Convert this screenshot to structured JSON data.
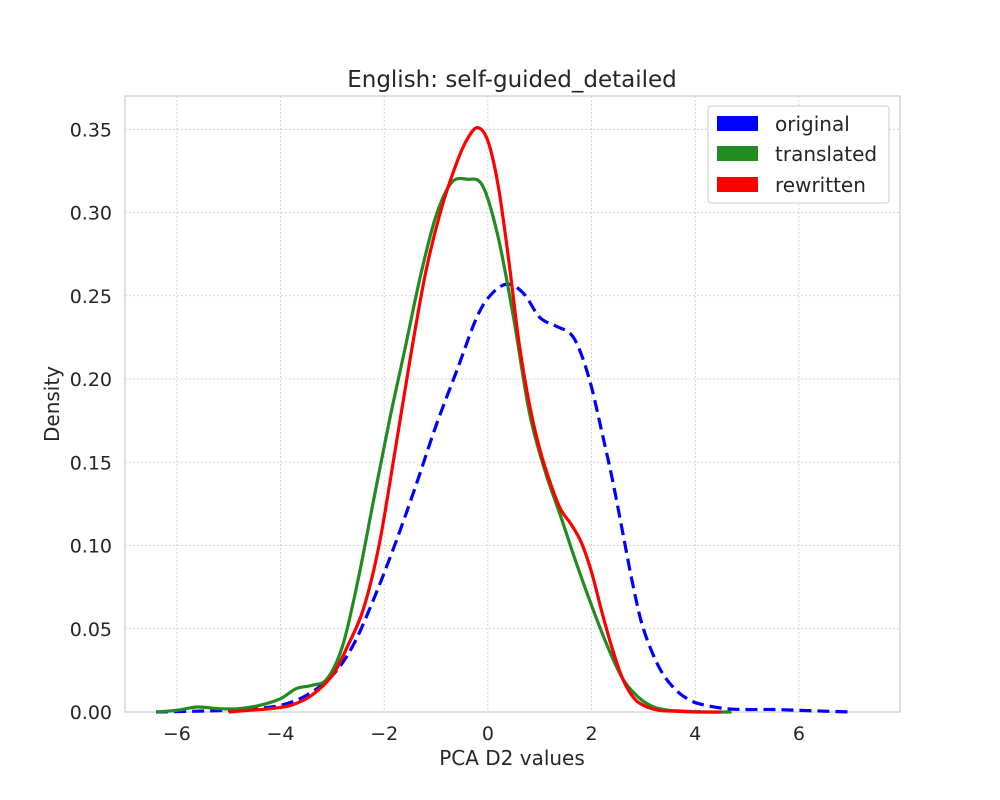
{
  "chart_data": {
    "type": "line",
    "title": "English: self-guided_detailed",
    "xlabel": "PCA D2 values",
    "ylabel": "Density",
    "xlim": [
      -7.0,
      7.95
    ],
    "ylim": [
      0,
      0.37
    ],
    "xticks": [
      -6,
      -4,
      -2,
      0,
      2,
      4,
      6
    ],
    "xtick_labels": [
      "−6",
      "−4",
      "−2",
      "0",
      "2",
      "4",
      "6"
    ],
    "yticks": [
      0.0,
      0.05,
      0.1,
      0.15,
      0.2,
      0.25,
      0.3,
      0.35
    ],
    "ytick_labels": [
      "0.00",
      "0.05",
      "0.10",
      "0.15",
      "0.20",
      "0.25",
      "0.30",
      "0.35"
    ],
    "grid": true,
    "legend_position": "top-right",
    "series": [
      {
        "name": "original",
        "color": "#0000ff",
        "dash": true,
        "x": [
          -6.4,
          -5.6,
          -5.0,
          -4.5,
          -4.0,
          -3.5,
          -3.0,
          -2.6,
          -2.2,
          -1.8,
          -1.4,
          -1.0,
          -0.6,
          -0.2,
          0.1,
          0.4,
          0.7,
          1.0,
          1.3,
          1.6,
          1.8,
          2.0,
          2.2,
          2.4,
          2.6,
          2.8,
          3.0,
          3.3,
          3.6,
          3.9,
          4.2,
          4.6,
          5.0,
          5.5,
          6.0,
          6.5,
          7.0
        ],
        "y": [
          0.0,
          0.0005,
          0.001,
          0.002,
          0.004,
          0.01,
          0.022,
          0.04,
          0.068,
          0.1,
          0.135,
          0.172,
          0.205,
          0.238,
          0.252,
          0.257,
          0.251,
          0.237,
          0.232,
          0.227,
          0.215,
          0.195,
          0.168,
          0.14,
          0.108,
          0.076,
          0.05,
          0.027,
          0.014,
          0.007,
          0.004,
          0.002,
          0.0015,
          0.0015,
          0.001,
          0.0005,
          0.0
        ]
      },
      {
        "name": "translated",
        "color": "#228b22",
        "dash": false,
        "x": [
          -6.4,
          -6.0,
          -5.6,
          -5.2,
          -4.8,
          -4.4,
          -4.0,
          -3.7,
          -3.4,
          -3.1,
          -2.8,
          -2.5,
          -2.2,
          -1.9,
          -1.6,
          -1.3,
          -1.0,
          -0.7,
          -0.4,
          -0.1,
          0.2,
          0.5,
          0.8,
          1.1,
          1.4,
          1.7,
          2.0,
          2.3,
          2.6,
          2.9,
          3.2,
          3.5,
          3.8,
          4.2,
          4.7
        ],
        "y": [
          0.0,
          0.001,
          0.003,
          0.002,
          0.002,
          0.004,
          0.008,
          0.014,
          0.016,
          0.02,
          0.04,
          0.08,
          0.128,
          0.175,
          0.218,
          0.262,
          0.298,
          0.318,
          0.32,
          0.316,
          0.285,
          0.236,
          0.18,
          0.145,
          0.118,
          0.09,
          0.064,
          0.04,
          0.02,
          0.009,
          0.003,
          0.001,
          0.0005,
          0.0,
          0.0
        ]
      },
      {
        "name": "rewritten",
        "color": "#ff0000",
        "dash": false,
        "x": [
          -5.0,
          -4.6,
          -4.2,
          -3.8,
          -3.4,
          -3.0,
          -2.7,
          -2.4,
          -2.1,
          -1.8,
          -1.5,
          -1.2,
          -0.9,
          -0.6,
          -0.4,
          -0.2,
          0.0,
          0.2,
          0.4,
          0.6,
          0.8,
          1.0,
          1.2,
          1.4,
          1.6,
          1.8,
          2.0,
          2.2,
          2.4,
          2.6,
          2.8,
          3.0,
          3.3,
          3.6,
          4.0,
          4.5
        ],
        "y": [
          0.0,
          0.001,
          0.002,
          0.004,
          0.01,
          0.022,
          0.04,
          0.062,
          0.1,
          0.155,
          0.212,
          0.264,
          0.302,
          0.33,
          0.344,
          0.351,
          0.343,
          0.316,
          0.272,
          0.222,
          0.185,
          0.158,
          0.138,
          0.122,
          0.113,
          0.102,
          0.084,
          0.06,
          0.038,
          0.02,
          0.009,
          0.004,
          0.001,
          0.0005,
          0.0,
          0.0
        ]
      }
    ]
  }
}
